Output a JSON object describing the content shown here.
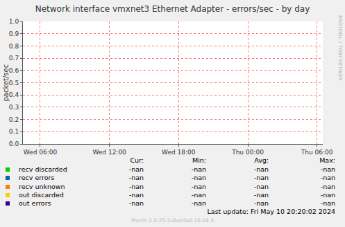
{
  "chart_data": {
    "type": "line",
    "title": "Network interface vmxnet3 Ethernet Adapter - errors/sec - by day",
    "y_label": "packet/sec",
    "x": [],
    "xlim": [
      4.5,
      30.5
    ],
    "xticks": [
      {
        "value": 6,
        "label": "Wed 06:00"
      },
      {
        "value": 12,
        "label": "Wed 12:00"
      },
      {
        "value": 18,
        "label": "Wed 18:00"
      },
      {
        "value": 24,
        "label": "Thu 00:00"
      },
      {
        "value": 30,
        "label": "Thu 06:00"
      }
    ],
    "ylim": [
      0,
      1
    ],
    "yticks": [
      {
        "value": 0,
        "label": "0.0"
      },
      {
        "value": 0.1,
        "label": "0.1"
      },
      {
        "value": 0.2,
        "label": "0.2"
      },
      {
        "value": 0.3,
        "label": "0.3"
      },
      {
        "value": 0.4,
        "label": "0.4"
      },
      {
        "value": 0.5,
        "label": "0.5"
      },
      {
        "value": 0.6,
        "label": "0.6"
      },
      {
        "value": 0.7,
        "label": "0.7"
      },
      {
        "value": 0.8,
        "label": "0.8"
      },
      {
        "value": 0.9,
        "label": "0.9"
      },
      {
        "value": 1,
        "label": "1.0"
      }
    ],
    "grid": true,
    "stat_columns": [
      "Cur:",
      "Min:",
      "Avg:",
      "Max:"
    ],
    "series": [
      {
        "name": "recv discarded",
        "color": "#00cc00",
        "values": [],
        "stats": [
          "-nan",
          "-nan",
          "-nan",
          "-nan"
        ]
      },
      {
        "name": "recv errors",
        "color": "#0066b3",
        "values": [],
        "stats": [
          "-nan",
          "-nan",
          "-nan",
          "-nan"
        ]
      },
      {
        "name": "recv unknown",
        "color": "#ff8000",
        "values": [],
        "stats": [
          "-nan",
          "-nan",
          "-nan",
          "-nan"
        ]
      },
      {
        "name": "out discarded",
        "color": "#ffcc00",
        "values": [],
        "stats": [
          "-nan",
          "-nan",
          "-nan",
          "-nan"
        ]
      },
      {
        "name": "out errors",
        "color": "#330099",
        "values": [],
        "stats": [
          "-nan",
          "-nan",
          "-nan",
          "-nan"
        ]
      }
    ],
    "last_update": "Last update:  Fri May 10 20:20:02 2024",
    "footer": "Munin 2.0.25-2ubuntu0.16.04.4",
    "watermark": "RRDTOOL / TOBI OETIKER"
  }
}
